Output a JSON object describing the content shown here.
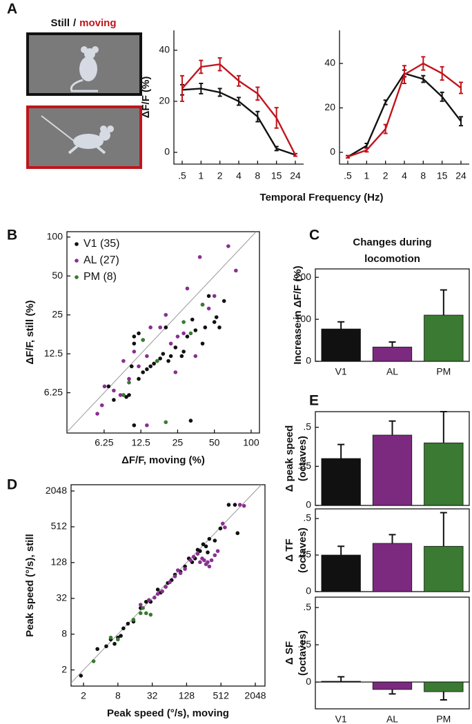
{
  "stimulus_label": {
    "still": "Still",
    "separator": "/",
    "moving": "moving"
  },
  "chart_data": [
    {
      "type": "line",
      "panel": "A",
      "ylabel": "ΔF/F (%)",
      "xlabel": "Temporal Frequency (Hz)",
      "categories": [
        ".5",
        "1",
        "2",
        "4",
        "8",
        "15",
        "24"
      ],
      "ylim": [
        -4.6,
        47.8
      ],
      "yticks": [
        0,
        20,
        40
      ],
      "series": [
        {
          "color": "#111111",
          "values": [
            24.5,
            25,
            23.5,
            20,
            14,
            1.5,
            -1
          ],
          "errors": [
            2,
            2,
            1.5,
            1.5,
            2,
            0.8,
            0.5
          ]
        },
        {
          "color": "#c0141c",
          "values": [
            25,
            33.5,
            34.5,
            28,
            23,
            13.5,
            -1
          ],
          "errors": [
            5,
            2.5,
            2.5,
            2,
            2.5,
            4,
            0.5
          ]
        }
      ]
    },
    {
      "type": "line",
      "categories": [
        ".5",
        "1",
        "2",
        "4",
        "8",
        "15",
        "24"
      ],
      "ylim": [
        -5.3,
        54.9
      ],
      "yticks": [
        0,
        20,
        40
      ],
      "series": [
        {
          "color": "#111111",
          "values": [
            -2,
            3,
            22.5,
            35.5,
            33,
            25,
            14
          ],
          "errors": [
            0.5,
            1,
            1,
            1.5,
            1.5,
            2,
            2
          ]
        },
        {
          "color": "#c0141c",
          "values": [
            -2,
            1,
            10.5,
            35,
            40,
            35.5,
            29
          ],
          "errors": [
            0.5,
            0.8,
            2,
            4,
            3,
            3,
            2.5
          ]
        }
      ]
    },
    {
      "type": "scatter",
      "panel": "B",
      "ylabel": "ΔF/F, still (%)",
      "xlabel": "ΔF/F, moving (%)",
      "xlabel_color": "#c0141c",
      "log_scale": true,
      "diagonal": true,
      "legend": "upper left",
      "xlim": [
        3.1,
        117
      ],
      "ylim": [
        3.05,
        110
      ],
      "xticks": [
        6.25,
        12.5,
        25,
        50,
        100
      ],
      "yticks": [
        6.25,
        12.5,
        25,
        50,
        100
      ],
      "series": [
        {
          "name": "V1 (35)",
          "color": "#111111",
          "x": [
            6.8,
            7.5,
            9,
            9.5,
            10,
            10.5,
            11,
            11,
            12,
            12,
            13,
            14,
            15,
            16,
            17,
            18,
            19,
            20,
            21,
            22,
            24,
            27,
            28,
            30,
            33,
            35,
            40,
            42,
            45,
            50,
            52,
            55,
            60,
            32,
            11
          ],
          "values": [
            7,
            5.5,
            6,
            5.8,
            6,
            10,
            15,
            17,
            18,
            8,
            9,
            9.5,
            10,
            10.5,
            11,
            11.5,
            12.5,
            20,
            11,
            12,
            14,
            12,
            13,
            17,
            23,
            19,
            15,
            20,
            35,
            22,
            24,
            20,
            32,
            3.8,
            3.5
          ]
        },
        {
          "name": "AL (27)",
          "color": "#8a2f92",
          "x": [
            5.5,
            6,
            6.3,
            7.5,
            8.5,
            9,
            10,
            11,
            12,
            13,
            14,
            14,
            15,
            18,
            20,
            22,
            24,
            25,
            28,
            30,
            35,
            38,
            40,
            45,
            50,
            65,
            75
          ],
          "values": [
            4.3,
            5,
            7,
            6.5,
            6,
            11,
            8,
            13,
            10,
            16,
            12,
            3.5,
            20,
            20,
            25,
            15,
            9,
            17,
            18,
            40,
            12,
            70,
            30,
            28,
            35,
            85,
            55
          ]
        },
        {
          "name": "PM (8)",
          "color": "#3a7a32",
          "x": [
            9,
            10,
            13,
            17,
            20,
            28,
            32,
            40
          ],
          "values": [
            6,
            7.5,
            16,
            11,
            3.7,
            22,
            18,
            30
          ]
        }
      ]
    },
    {
      "type": "bar",
      "panel": "C",
      "title": [
        "Changes during",
        "locomotion"
      ],
      "ylabel": "Increase in ΔF/F (%)",
      "categories": [
        "V1",
        "AL",
        "PM"
      ],
      "colors": [
        "#111111",
        "#7b2a7f",
        "#3a7a32"
      ],
      "values": [
        77,
        34,
        110
      ],
      "errors": [
        17,
        12,
        60
      ],
      "ylim": [
        0,
        220
      ],
      "yticks": [
        0,
        100,
        200
      ]
    },
    {
      "type": "scatter",
      "panel": "D",
      "ylabel": "Peak speed (°/s), still",
      "xlabel": "Peak speed (°/s), moving",
      "xlabel_color": "#c0141c",
      "log_scale": true,
      "diagonal": true,
      "xlim": [
        1.21,
        3025
      ],
      "ylim": [
        1.07,
        2610
      ],
      "xticks": [
        2,
        8,
        32,
        128,
        512,
        2048
      ],
      "yticks": [
        2,
        8,
        32,
        128,
        512,
        2048
      ],
      "series": [
        {
          "color": "#111111",
          "x": [
            1.8,
            3.5,
            5,
            6,
            7,
            8,
            9,
            10,
            12,
            15,
            20,
            25,
            30,
            40,
            45,
            55,
            60,
            70,
            80,
            100,
            120,
            140,
            160,
            180,
            200,
            220,
            250,
            280,
            300,
            320,
            400,
            500,
            700,
            900,
            1000
          ],
          "values": [
            1.6,
            4.5,
            5,
            6.5,
            5.5,
            7,
            7.5,
            10,
            12,
            13,
            22,
            28,
            28,
            45,
            40,
            50,
            58,
            65,
            80,
            90,
            110,
            150,
            130,
            150,
            210,
            200,
            260,
            240,
            190,
            320,
            300,
            480,
            1200,
            1200,
            400
          ]
        },
        {
          "color": "#8a2f92",
          "x": [
            20,
            28,
            35,
            40,
            48,
            55,
            65,
            80,
            90,
            100,
            120,
            150,
            170,
            200,
            220,
            240,
            260,
            280,
            300,
            320,
            350,
            400,
            450,
            550,
            600,
            1100,
            1300
          ],
          "values": [
            25,
            30,
            33,
            38,
            42,
            50,
            60,
            75,
            95,
            85,
            100,
            140,
            160,
            180,
            130,
            150,
            140,
            120,
            130,
            110,
            140,
            170,
            200,
            580,
            500,
            1200,
            1150
          ]
        },
        {
          "color": "#3a7a32",
          "x": [
            3,
            6,
            8,
            15,
            20,
            22,
            25,
            30
          ],
          "values": [
            2.8,
            7,
            6.5,
            14,
            18,
            22,
            18,
            17
          ]
        }
      ]
    },
    {
      "type": "bar",
      "panel": "E",
      "ylabel": [
        "Δ peak speed",
        "(octaves)"
      ],
      "colors": [
        "#111111",
        "#7b2a7f",
        "#3a7a32"
      ],
      "values": [
        0.3,
        0.45,
        0.4
      ],
      "errors": [
        0.09,
        0.09,
        0.2
      ],
      "ylim": [
        0,
        0.6
      ],
      "yticks": [
        0,
        {
          "value": 0.25,
          "label": ".25"
        },
        {
          "value": 0.5,
          "label": ".5"
        }
      ]
    },
    {
      "type": "bar",
      "ylabel": [
        "Δ TF",
        "(octaves)"
      ],
      "colors": [
        "#111111",
        "#7b2a7f",
        "#3a7a32"
      ],
      "values": [
        0.25,
        0.33,
        0.31
      ],
      "errors": [
        0.06,
        0.06,
        0.23
      ],
      "ylim": [
        0,
        0.566
      ],
      "yticks": [
        0,
        {
          "value": 0.25,
          "label": ".25"
        },
        {
          "value": 0.5,
          "label": ".5"
        }
      ]
    },
    {
      "type": "bar",
      "ylabel": [
        "Δ SF",
        "(octaves)"
      ],
      "categories": [
        "V1",
        "AL",
        "PM"
      ],
      "colors": [
        "#111111",
        "#7b2a7f",
        "#3a7a32"
      ],
      "values": [
        0.005,
        -0.05,
        -0.065
      ],
      "errors": [
        0.03,
        0.03,
        0.055
      ],
      "ylim": [
        -0.18,
        0.57
      ],
      "yticks": [
        0,
        {
          "value": 0.25,
          "label": ".25"
        },
        {
          "value": 0.5,
          "label": ".5"
        }
      ]
    }
  ]
}
